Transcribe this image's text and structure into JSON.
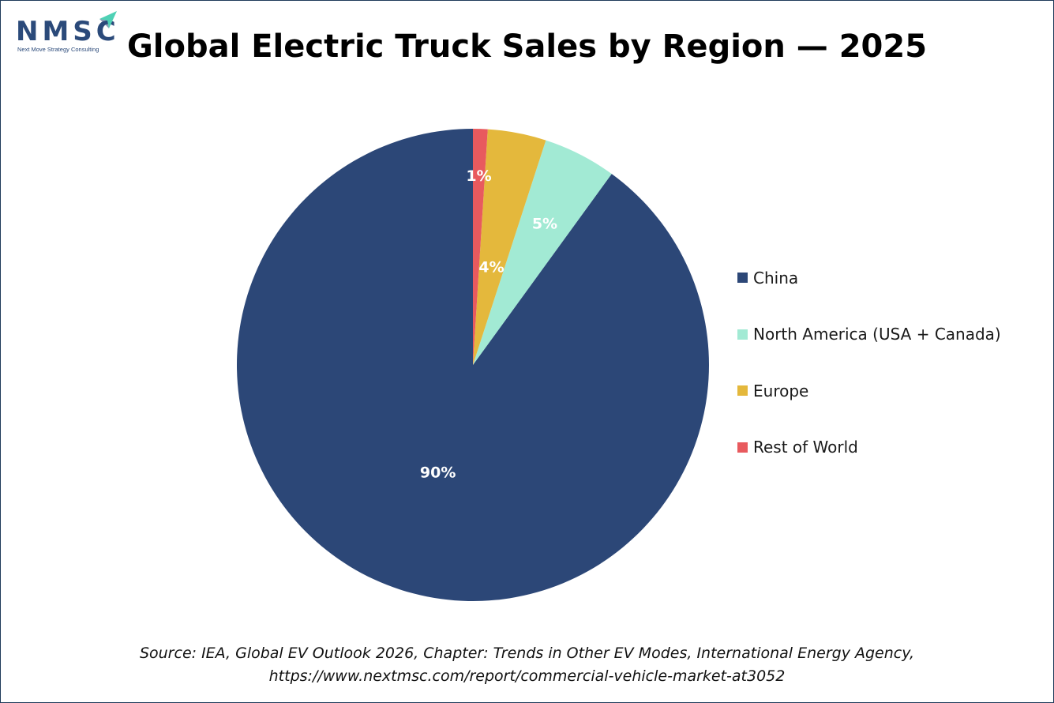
{
  "logo": {
    "name": "NMSC",
    "tagline": "Next Move Strategy Consulting",
    "accent": "#4fd1b5"
  },
  "chart_data": {
    "type": "pie",
    "title": "Global Electric Truck Sales by Region — 2025",
    "categories": [
      "China",
      "North America (USA + Canada)",
      "Europe",
      "Rest of World"
    ],
    "values": [
      90,
      5,
      4,
      1
    ],
    "labels": [
      "90%",
      "5%",
      "4%",
      "1%"
    ],
    "colors": [
      "#2c4777",
      "#a2ead4",
      "#e4b83c",
      "#e85a5e"
    ],
    "legend_position": "right"
  },
  "source": {
    "line1": "Source: IEA, Global EV Outlook 2026, Chapter: Trends in Other EV Modes, International Energy Agency,",
    "line2": "https://www.nextmsc.com/report/commercial-vehicle-market-at3052"
  }
}
